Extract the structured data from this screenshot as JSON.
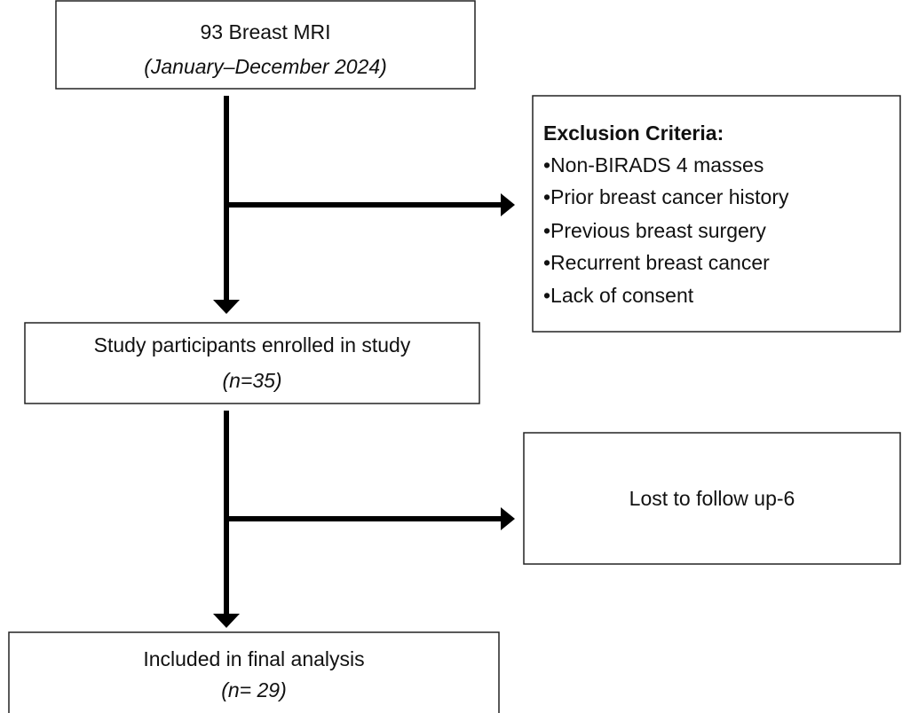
{
  "nodes": [
    {
      "text": "93 Breast MRI",
      "note": "(January–December 2024)"
    },
    {
      "text": "Study participants enrolled in study",
      "note": "(n=35)"
    },
    {
      "text": "Included in final analysis",
      "note": "(n= 29)"
    }
  ],
  "exclusion": {
    "title": "Exclusion Criteria:",
    "items": [
      "•Non-BIRADS 4 masses",
      "•Prior breast cancer history",
      "•Previous breast surgery",
      "•Recurrent breast cancer",
      "•Lack of consent"
    ]
  },
  "lost": {
    "text": "Lost to follow up-6"
  }
}
